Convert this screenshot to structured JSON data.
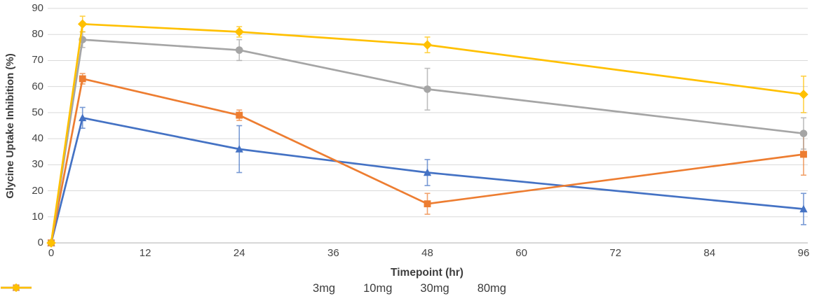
{
  "chart_data": {
    "type": "line",
    "title": "",
    "xlabel": "Timepoint (hr)",
    "ylabel": "Glycine Uptake Inhibition (%)",
    "x": [
      0,
      4,
      24,
      48,
      96
    ],
    "x_tick_values": [
      0,
      12,
      24,
      36,
      48,
      60,
      72,
      84,
      96
    ],
    "y_tick_values": [
      0,
      10,
      20,
      30,
      40,
      50,
      60,
      70,
      80,
      90
    ],
    "xlim": [
      0,
      96
    ],
    "ylim": [
      0,
      90
    ],
    "grid": "horizontal-only",
    "legend_position": "bottom-center",
    "error_bars": true,
    "colors": {
      "axis_line": "#BFBFBF",
      "gridline": "#D9D9D9",
      "text": "#444444"
    },
    "series": [
      {
        "name": "3mg",
        "color": "#4472C4",
        "marker": "triangle",
        "values": [
          0,
          48,
          36,
          27,
          13
        ],
        "errors": [
          0,
          4,
          9,
          5,
          6
        ]
      },
      {
        "name": "10mg",
        "color": "#ED7D31",
        "marker": "square",
        "values": [
          0,
          63,
          49,
          15,
          34
        ],
        "errors": [
          0,
          2,
          2,
          4,
          8
        ]
      },
      {
        "name": "30mg",
        "color": "#A5A5A5",
        "marker": "circle",
        "values": [
          0,
          78,
          74,
          59,
          42
        ],
        "errors": [
          0,
          3,
          4,
          8,
          6
        ]
      },
      {
        "name": "80mg",
        "color": "#FFC000",
        "marker": "diamond",
        "values": [
          0,
          84,
          81,
          76,
          57
        ],
        "errors": [
          0,
          3,
          2,
          3,
          7
        ]
      }
    ]
  }
}
